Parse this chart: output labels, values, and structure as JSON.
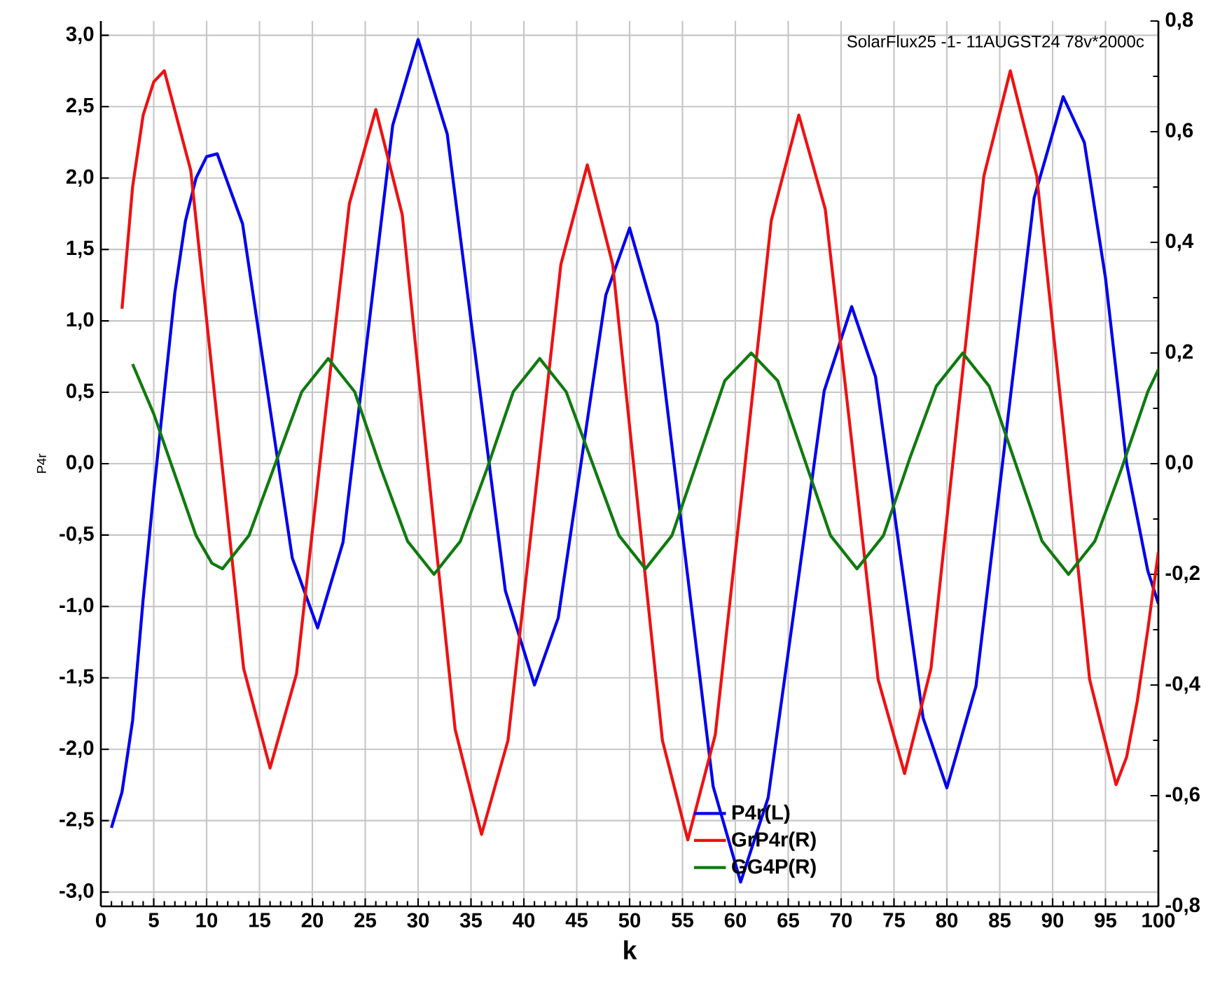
{
  "chart_data": {
    "type": "line",
    "xlabel": "k",
    "ylabel": "P4r",
    "annotations": [
      "SolarFlux25 -1- 11AUGST24 78v*2000c"
    ],
    "xlim": [
      0,
      100
    ],
    "xticks": [
      0,
      5,
      10,
      15,
      20,
      25,
      30,
      35,
      40,
      45,
      50,
      55,
      60,
      65,
      70,
      75,
      80,
      85,
      90,
      95,
      100
    ],
    "ylim": [
      -3.1,
      3.1
    ],
    "yticks": [
      {
        "value": -3,
        "label": "-3,0"
      },
      {
        "value": -2.5,
        "label": "-2,5"
      },
      {
        "value": -2,
        "label": "-2,0"
      },
      {
        "value": -1.5,
        "label": "-1,5"
      },
      {
        "value": -1,
        "label": "-1,0"
      },
      {
        "value": -0.5,
        "label": "-0,5"
      },
      {
        "value": 0,
        "label": "0,0"
      },
      {
        "value": 0.5,
        "label": "0,5"
      },
      {
        "value": 1,
        "label": "1,0"
      },
      {
        "value": 1.5,
        "label": "1,5"
      },
      {
        "value": 2,
        "label": "2,0"
      },
      {
        "value": 2.5,
        "label": "2,5"
      },
      {
        "value": 3,
        "label": "3,0"
      }
    ],
    "y2lim": [
      -0.8,
      0.8
    ],
    "y2ticks": [
      {
        "value": -0.8,
        "label": "-0,8"
      },
      {
        "value": -0.6,
        "label": "-0,6"
      },
      {
        "value": -0.4,
        "label": "-0,4"
      },
      {
        "value": -0.2,
        "label": "-0,2"
      },
      {
        "value": 0,
        "label": "0,0"
      },
      {
        "value": 0.2,
        "label": "0,2"
      },
      {
        "value": 0.4,
        "label": "0,4"
      },
      {
        "value": 0.6,
        "label": "0,6"
      },
      {
        "value": 0.8,
        "label": "0,8"
      }
    ],
    "grid": true,
    "legend": "bottom",
    "marker": "none",
    "line_style": "solid",
    "series": [
      {
        "name": "P4r(L)",
        "color": "#0000ee",
        "x": [
          1,
          2,
          3,
          4,
          5,
          6,
          7,
          8,
          9,
          10,
          11,
          13.4,
          15.75,
          18.1,
          20.5,
          22.9,
          25.25,
          27.6,
          30,
          32.75,
          35.5,
          38.25,
          41,
          43.25,
          45.5,
          47.75,
          50,
          52.6,
          55.25,
          57.9,
          60.5,
          63.1,
          65.75,
          68.4,
          71,
          73.25,
          75.5,
          77.75,
          80,
          82.75,
          85.5,
          88.25,
          91,
          93,
          95,
          97,
          99,
          100
        ],
        "values": [
          -2.55,
          -2.3,
          -1.8,
          -0.95,
          -0.2,
          0.5,
          1.2,
          1.7,
          2.0,
          2.15,
          2.17,
          1.68,
          0.51,
          -0.66,
          -1.15,
          -0.55,
          0.91,
          2.37,
          2.97,
          2.31,
          0.71,
          -0.89,
          -1.55,
          -1.08,
          0.05,
          1.18,
          1.65,
          0.98,
          -0.64,
          -2.26,
          -2.93,
          -2.34,
          -0.92,
          0.51,
          1.1,
          0.61,
          -0.59,
          -1.78,
          -2.27,
          -1.56,
          0.15,
          1.86,
          2.57,
          2.25,
          1.3,
          0.0,
          -0.75,
          -0.98
        ]
      },
      {
        "name": "GrP4r(R)",
        "color": "#ee1111",
        "axis": "y2",
        "x": [
          2,
          3,
          4,
          5,
          6,
          8.5,
          11,
          13.5,
          16,
          18.5,
          21,
          23.5,
          26,
          28.5,
          31,
          33.5,
          36,
          38.5,
          41,
          43.5,
          46,
          48.4,
          50.75,
          53.1,
          55.5,
          58.1,
          60.75,
          63.4,
          66,
          68.5,
          71,
          73.5,
          76,
          78.5,
          81,
          83.5,
          86,
          88.5,
          91,
          93.5,
          96,
          97,
          98,
          99,
          100
        ],
        "values": [
          0.28,
          0.5,
          0.63,
          0.69,
          0.71,
          0.53,
          0.08,
          -0.37,
          -0.55,
          -0.38,
          0.05,
          0.47,
          0.64,
          0.45,
          -0.02,
          -0.48,
          -0.67,
          -0.5,
          -0.07,
          0.36,
          0.54,
          0.36,
          -0.07,
          -0.5,
          -0.68,
          -0.49,
          -0.03,
          0.44,
          0.63,
          0.46,
          0.04,
          -0.39,
          -0.56,
          -0.37,
          0.08,
          0.52,
          0.71,
          0.52,
          0.07,
          -0.39,
          -0.58,
          -0.53,
          -0.43,
          -0.3,
          -0.16
        ]
      },
      {
        "name": "GG4P(R)",
        "color": "#0f7a0f",
        "axis": "y2",
        "x": [
          3,
          5,
          7,
          9,
          10.5,
          11.5,
          14,
          16.5,
          19,
          21.5,
          24,
          26.5,
          29,
          31.5,
          34,
          36.5,
          39,
          41.5,
          44,
          46.5,
          49,
          51.5,
          54,
          56.5,
          59,
          61.5,
          64,
          66.5,
          69,
          71.5,
          74,
          76.5,
          79,
          81.5,
          84,
          86.5,
          89,
          91.5,
          94,
          96.5,
          99,
          100
        ],
        "values": [
          0.18,
          0.09,
          -0.02,
          -0.13,
          -0.18,
          -0.19,
          -0.13,
          0.0,
          0.13,
          0.19,
          0.13,
          -0.01,
          -0.14,
          -0.2,
          -0.14,
          -0.01,
          0.13,
          0.19,
          0.13,
          0.0,
          -0.13,
          -0.19,
          -0.13,
          0.01,
          0.15,
          0.2,
          0.15,
          0.01,
          -0.13,
          -0.19,
          -0.13,
          0.01,
          0.14,
          0.2,
          0.14,
          0.0,
          -0.14,
          -0.2,
          -0.14,
          -0.01,
          0.13,
          0.17
        ]
      }
    ]
  }
}
